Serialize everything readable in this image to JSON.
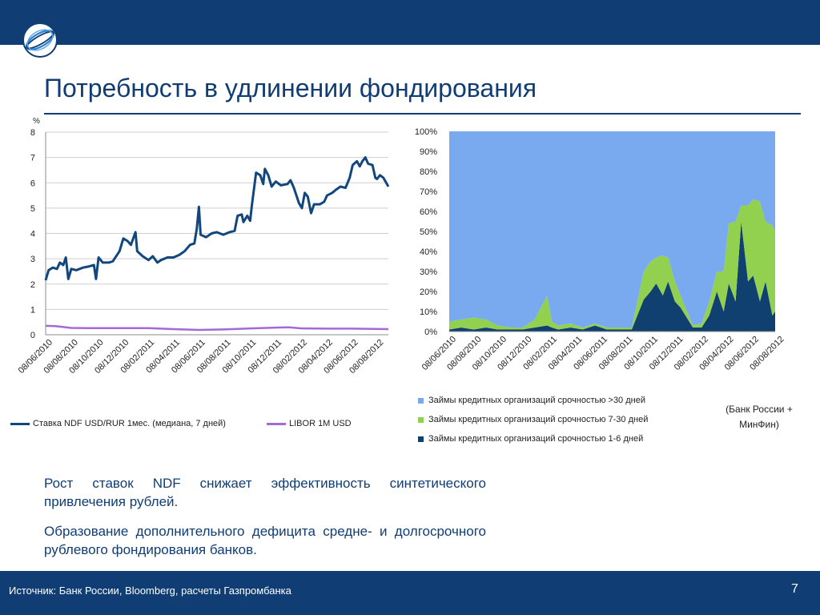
{
  "slide": {
    "title": "Потребность в удлинении фондирования",
    "source_note": "(Банк России + МинФин)",
    "paragraphs": [
      "Рост ставок NDF снижает эффективность синтетического привлечения рублей.",
      "Образование дополнительного дефицита средне- и долгосрочного рублевого фондирования банков."
    ],
    "footer_source": "Источник: Банк России, Bloomberg, расчеты Газпромбанка",
    "page_number": "7"
  },
  "colors": {
    "brand_blue": "#0f3d74",
    "ndf_series": "#12477d",
    "libor_series": "#a36ad6",
    "long_term_area": "#79a9ee",
    "mid_term_area": "#92d050",
    "short_term_area": "#10406f"
  },
  "chart_data": [
    {
      "type": "line",
      "unit_label": "%",
      "ylim": [
        0,
        8
      ],
      "y_ticks": [
        "0",
        "1",
        "2",
        "3",
        "4",
        "5",
        "6",
        "7",
        "8"
      ],
      "x_tick_labels": [
        "08/06/2010",
        "08/08/2010",
        "08/10/2010",
        "08/12/2010",
        "08/02/2011",
        "08/04/2011",
        "08/06/2011",
        "08/08/2011",
        "08/10/2011",
        "08/12/2011",
        "08/02/2012",
        "08/04/2012",
        "08/06/2012",
        "08/08/2012"
      ],
      "grid": true,
      "legend_position": "bottom",
      "series": [
        {
          "name": "Ставка NDF USD/RUR 1мес. (медиана, 7 дней)",
          "points": [
            [
              "2010-06-08",
              2.15
            ],
            [
              "2010-06-15",
              2.55
            ],
            [
              "2010-06-25",
              2.65
            ],
            [
              "2010-07-05",
              2.6
            ],
            [
              "2010-07-12",
              2.85
            ],
            [
              "2010-07-20",
              2.75
            ],
            [
              "2010-07-26",
              3.05
            ],
            [
              "2010-08-01",
              2.2
            ],
            [
              "2010-08-08",
              2.6
            ],
            [
              "2010-08-20",
              2.55
            ],
            [
              "2010-09-05",
              2.65
            ],
            [
              "2010-09-20",
              2.7
            ],
            [
              "2010-10-01",
              2.75
            ],
            [
              "2010-10-06",
              2.2
            ],
            [
              "2010-10-12",
              3.05
            ],
            [
              "2010-10-22",
              2.85
            ],
            [
              "2010-11-05",
              2.85
            ],
            [
              "2010-11-15",
              2.9
            ],
            [
              "2010-12-01",
              3.3
            ],
            [
              "2010-12-10",
              3.8
            ],
            [
              "2010-12-20",
              3.7
            ],
            [
              "2010-12-28",
              3.55
            ],
            [
              "2011-01-08",
              4.05
            ],
            [
              "2011-01-12",
              3.3
            ],
            [
              "2011-01-25",
              3.1
            ],
            [
              "2011-02-08",
              2.95
            ],
            [
              "2011-02-18",
              3.1
            ],
            [
              "2011-03-01",
              2.85
            ],
            [
              "2011-03-10",
              2.95
            ],
            [
              "2011-03-25",
              3.05
            ],
            [
              "2011-04-08",
              3.05
            ],
            [
              "2011-04-22",
              3.15
            ],
            [
              "2011-05-05",
              3.3
            ],
            [
              "2011-05-18",
              3.55
            ],
            [
              "2011-05-28",
              3.6
            ],
            [
              "2011-06-03",
              4.2
            ],
            [
              "2011-06-08",
              5.05
            ],
            [
              "2011-06-12",
              3.95
            ],
            [
              "2011-06-25",
              3.85
            ],
            [
              "2011-07-08",
              4.0
            ],
            [
              "2011-07-20",
              4.05
            ],
            [
              "2011-08-05",
              3.95
            ],
            [
              "2011-08-20",
              4.05
            ],
            [
              "2011-09-01",
              4.1
            ],
            [
              "2011-09-08",
              4.7
            ],
            [
              "2011-09-18",
              4.75
            ],
            [
              "2011-09-22",
              4.45
            ],
            [
              "2011-10-01",
              4.7
            ],
            [
              "2011-10-08",
              4.5
            ],
            [
              "2011-10-12",
              5.1
            ],
            [
              "2011-10-22",
              6.4
            ],
            [
              "2011-11-01",
              6.3
            ],
            [
              "2011-11-08",
              5.95
            ],
            [
              "2011-11-12",
              6.55
            ],
            [
              "2011-11-20",
              6.3
            ],
            [
              "2011-11-28",
              5.85
            ],
            [
              "2011-12-08",
              6.05
            ],
            [
              "2011-12-20",
              5.9
            ],
            [
              "2012-01-05",
              5.95
            ],
            [
              "2012-01-12",
              6.1
            ],
            [
              "2012-01-20",
              5.8
            ],
            [
              "2012-02-01",
              5.2
            ],
            [
              "2012-02-08",
              5.0
            ],
            [
              "2012-02-15",
              5.6
            ],
            [
              "2012-02-22",
              5.45
            ],
            [
              "2012-03-01",
              4.8
            ],
            [
              "2012-03-08",
              5.15
            ],
            [
              "2012-03-22",
              5.15
            ],
            [
              "2012-04-01",
              5.25
            ],
            [
              "2012-04-08",
              5.5
            ],
            [
              "2012-04-20",
              5.6
            ],
            [
              "2012-05-01",
              5.75
            ],
            [
              "2012-05-10",
              5.85
            ],
            [
              "2012-05-22",
              5.8
            ],
            [
              "2012-06-01",
              6.2
            ],
            [
              "2012-06-08",
              6.7
            ],
            [
              "2012-06-18",
              6.85
            ],
            [
              "2012-06-25",
              6.65
            ],
            [
              "2012-07-01",
              6.85
            ],
            [
              "2012-07-08",
              7.0
            ],
            [
              "2012-07-15",
              6.75
            ],
            [
              "2012-07-25",
              6.7
            ],
            [
              "2012-08-01",
              6.2
            ],
            [
              "2012-08-05",
              6.15
            ],
            [
              "2012-08-12",
              6.3
            ],
            [
              "2012-08-20",
              6.2
            ],
            [
              "2012-09-01",
              5.85
            ]
          ]
        },
        {
          "name": "LIBOR 1M USD",
          "points": [
            [
              "2010-06-08",
              0.35
            ],
            [
              "2010-07-01",
              0.34
            ],
            [
              "2010-08-08",
              0.27
            ],
            [
              "2010-09-15",
              0.26
            ],
            [
              "2010-12-01",
              0.26
            ],
            [
              "2011-02-08",
              0.26
            ],
            [
              "2011-04-08",
              0.22
            ],
            [
              "2011-06-08",
              0.19
            ],
            [
              "2011-08-08",
              0.21
            ],
            [
              "2011-10-08",
              0.25
            ],
            [
              "2011-12-08",
              0.28
            ],
            [
              "2012-01-08",
              0.29
            ],
            [
              "2012-02-08",
              0.25
            ],
            [
              "2012-04-08",
              0.24
            ],
            [
              "2012-06-08",
              0.24
            ],
            [
              "2012-09-01",
              0.22
            ]
          ]
        }
      ]
    },
    {
      "type": "area",
      "stacked": "percent",
      "ylim": [
        0,
        100
      ],
      "y_ticks": [
        "0%",
        "10%",
        "20%",
        "30%",
        "40%",
        "50%",
        "60%",
        "70%",
        "80%",
        "90%",
        "100%"
      ],
      "x_tick_labels": [
        "08/06/2010",
        "08/08/2010",
        "08/10/2010",
        "08/12/2010",
        "08/02/2011",
        "08/04/2011",
        "08/06/2011",
        "08/08/2011",
        "08/10/2011",
        "08/12/2011",
        "08/02/2012",
        "08/04/2012",
        "08/06/2012",
        "08/08/2012"
      ],
      "grid": false,
      "legend_position": "bottom",
      "x": [
        "2010-06-08",
        "2010-07-08",
        "2010-08-08",
        "2010-09-08",
        "2010-10-08",
        "2010-11-08",
        "2010-12-08",
        "2011-01-08",
        "2011-02-08",
        "2011-02-20",
        "2011-03-08",
        "2011-04-08",
        "2011-05-08",
        "2011-06-08",
        "2011-07-08",
        "2011-08-08",
        "2011-09-08",
        "2011-10-08",
        "2011-10-25",
        "2011-11-08",
        "2011-11-25",
        "2011-12-08",
        "2011-12-25",
        "2012-01-08",
        "2012-02-08",
        "2012-03-01",
        "2012-03-20",
        "2012-04-08",
        "2012-04-25",
        "2012-05-08",
        "2012-05-25",
        "2012-06-08",
        "2012-06-25",
        "2012-07-08",
        "2012-07-25",
        "2012-08-08",
        "2012-08-25",
        "2012-09-01"
      ],
      "series": [
        {
          "name": "Займы кредитных организаций срочностью 1-6 дней",
          "values": [
            1,
            2,
            1,
            2,
            1,
            1,
            1,
            2,
            3,
            2,
            1,
            2,
            1,
            3,
            1,
            1,
            1,
            16,
            20,
            24,
            18,
            25,
            15,
            12,
            2,
            2,
            8,
            20,
            10,
            24,
            15,
            55,
            25,
            28,
            15,
            25,
            8,
            10
          ]
        },
        {
          "name": "Займы кредитных организаций срочностью 7-30 дней",
          "values": [
            4,
            4,
            6,
            4,
            2,
            1,
            1,
            4,
            15,
            3,
            2,
            2,
            1,
            1,
            1,
            1,
            1,
            14,
            15,
            13,
            20,
            12,
            10,
            6,
            1,
            2,
            7,
            10,
            20,
            30,
            40,
            8,
            38,
            38,
            50,
            30,
            45,
            40
          ]
        },
        {
          "name": "Займы кредитных организаций срочностью >30 дней",
          "values": [
            95,
            94,
            93,
            94,
            97,
            98,
            98,
            94,
            82,
            95,
            97,
            96,
            98,
            96,
            98,
            98,
            98,
            70,
            65,
            63,
            62,
            63,
            75,
            82,
            97,
            96,
            85,
            70,
            70,
            46,
            45,
            37,
            37,
            34,
            35,
            45,
            47,
            50
          ]
        }
      ]
    }
  ]
}
